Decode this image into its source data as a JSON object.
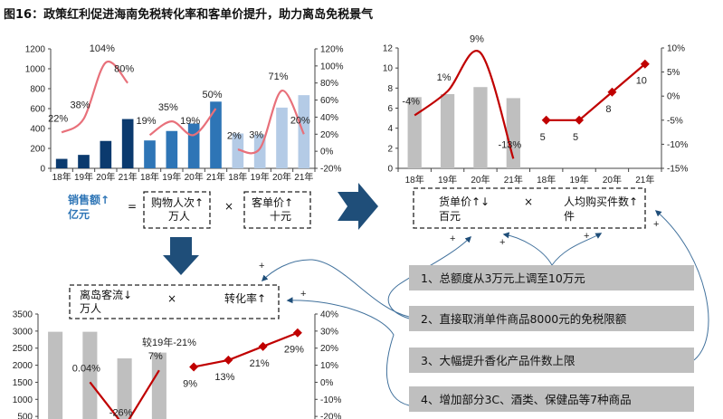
{
  "title": "图16：政策红利促进海南免税转化率和客单价提升，助力离岛免税景气",
  "colors": {
    "dark_blue": "#0b3a6e",
    "mid_blue": "#2e75b6",
    "light_blue": "#b4cbe6",
    "pink": "#e8707a",
    "red": "#c00000",
    "gray": "#bfbfbf",
    "arrow": "#1f4e79",
    "connector": "#41719c"
  },
  "formula_top": {
    "sales": "销售额↑",
    "sales_unit": "亿元",
    "equals": "=",
    "visits": "购物人次↑",
    "visits_unit": "万人",
    "times": "×",
    "price": "客单价↑",
    "price_unit": "十元"
  },
  "formula_right": {
    "item_price": "货单价↑↓",
    "item_price_unit": "百元",
    "times": "×",
    "items": "人均购买件数↑",
    "items_unit": "件"
  },
  "formula_bottom": {
    "flow": "离岛客流↓",
    "flow_unit": "万人",
    "times": "×",
    "conversion": "转化率↑"
  },
  "plus_sign": "+",
  "policies": [
    "1、总额度从3万元上调至10万元",
    "2、直接取消单件商品8000元的免税限额",
    "3、大幅提升香化产品件数上限",
    "4、增加部分3C、酒类、保健品等7种商品"
  ],
  "chart_data": [
    {
      "type": "bar+line",
      "categories": [
        "18年",
        "19年",
        "20年",
        "21年",
        "18年",
        "19年",
        "20年",
        "21年",
        "18年",
        "19年",
        "20年",
        "21年"
      ],
      "ylim_left": [
        0,
        1200
      ],
      "left_ticks": [
        0,
        200,
        400,
        600,
        800,
        1000,
        1200
      ],
      "ylim_right": [
        -20,
        120
      ],
      "right_ticks": [
        -20,
        0,
        20,
        40,
        60,
        80,
        100,
        120
      ],
      "right_format": "%",
      "bars": [
        {
          "start": 0,
          "values": [
            95,
            135,
            275,
            495
          ],
          "color": "#0b3a6e"
        },
        {
          "start": 4,
          "values": [
            280,
            375,
            450,
            670
          ],
          "color": "#2e75b6"
        },
        {
          "start": 8,
          "values": [
            350,
            340,
            610,
            735
          ],
          "color": "#b4cbe6"
        }
      ],
      "lines": [
        {
          "start": 0,
          "axis": "right",
          "smooth": true,
          "values": [
            22,
            38,
            104,
            80
          ],
          "labels": [
            "22%",
            "38%",
            "104%",
            "80%"
          ],
          "color": "#e8707a"
        },
        {
          "start": 4,
          "axis": "right",
          "smooth": true,
          "values": [
            19,
            35,
            19,
            50
          ],
          "labels": [
            "19%",
            "35%",
            "19%",
            "50%"
          ],
          "color": "#e8707a"
        },
        {
          "start": 8,
          "axis": "right",
          "smooth": true,
          "values": [
            2,
            3,
            71,
            20
          ],
          "labels": [
            "2%",
            "3%",
            "71%",
            "20%"
          ],
          "color": "#e8707a"
        }
      ]
    },
    {
      "type": "bar+line",
      "categories": [
        "18年",
        "19年",
        "20年",
        "21年",
        "18年",
        "19年",
        "20年",
        "21年"
      ],
      "ylim_left": [
        0,
        12
      ],
      "left_ticks": [
        0,
        2,
        4,
        6,
        8,
        10,
        12
      ],
      "ylim_right": [
        -15,
        10
      ],
      "right_ticks": [
        -15,
        -10,
        -5,
        0,
        5,
        10
      ],
      "right_format": "%",
      "bars": [
        {
          "start": 0,
          "values": [
            7.1,
            7.4,
            8.1,
            7.0
          ],
          "color": "#bfbfbf"
        }
      ],
      "lines": [
        {
          "start": 0,
          "axis": "right",
          "smooth": true,
          "values": [
            -4,
            1,
            9,
            -13
          ],
          "labels": [
            "-4%",
            "1%",
            "9%",
            "-13%"
          ],
          "color": "#c00000"
        },
        {
          "start": 4,
          "axis": "left",
          "smooth": false,
          "marker": "diamond",
          "values": [
            4.8,
            4.8,
            7.6,
            10.4
          ],
          "labels": [
            "5",
            "5",
            "8",
            "10"
          ],
          "color": "#c00000"
        }
      ]
    },
    {
      "type": "bar+line",
      "categories": [
        "",
        "",
        "",
        "",
        "",
        "",
        "",
        ""
      ],
      "ylim_left": [
        0,
        3500
      ],
      "left_ticks": [
        500,
        1000,
        1500,
        2000,
        2500,
        3000,
        3500
      ],
      "ylim_right": [
        -30,
        40
      ],
      "right_ticks": [
        -20,
        -10,
        0,
        10,
        20,
        30,
        40
      ],
      "right_format": "%",
      "bars": [
        {
          "start": 0,
          "values": [
            2980,
            2980,
            2200,
            2370
          ],
          "color": "#bfbfbf"
        }
      ],
      "lines": [
        {
          "start": 1,
          "axis": "right",
          "smooth": false,
          "values": [
            0.04,
            -26,
            7
          ],
          "labels": [
            "0.04%",
            "-26%",
            "7%"
          ],
          "color": "#c00000"
        },
        {
          "start": 4,
          "axis": "right",
          "smooth": false,
          "marker": "diamond",
          "values": [
            9,
            13,
            21,
            29
          ],
          "labels": [
            "9%",
            "13%",
            "21%",
            "29%"
          ],
          "color": "#c00000"
        }
      ],
      "annotation": "较19年-21%"
    }
  ]
}
